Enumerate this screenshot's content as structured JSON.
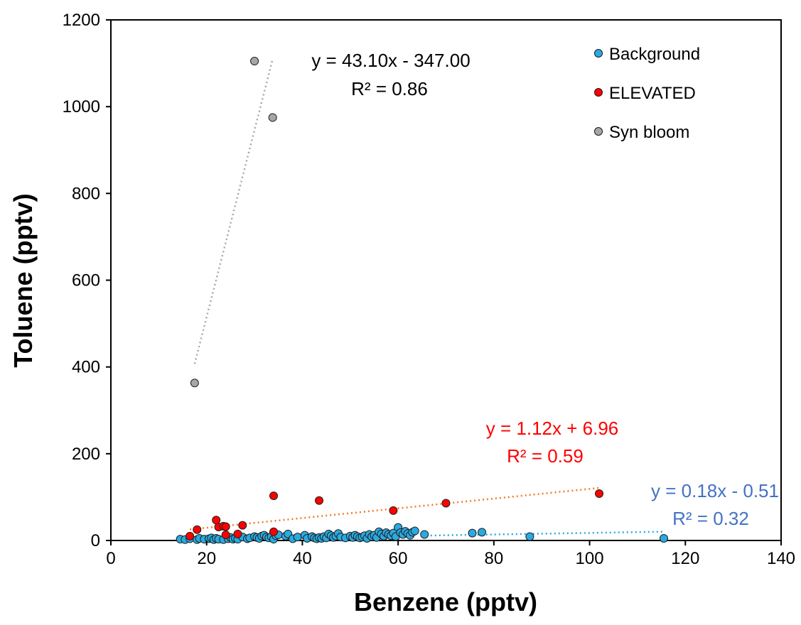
{
  "chart_data": {
    "type": "scatter",
    "title": "",
    "xlabel": "Benzene (pptv)",
    "ylabel": "Toluene (pptv)",
    "xlim": [
      0,
      140
    ],
    "ylim": [
      0,
      1200
    ],
    "xticks": [
      "0",
      "20",
      "40",
      "60",
      "80",
      "100",
      "120",
      "140"
    ],
    "yticks": [
      "0",
      "200",
      "400",
      "600",
      "800",
      "1000",
      "1200"
    ],
    "grid": false,
    "legend_position": "top-right",
    "series": [
      {
        "name": "Background",
        "color": "#29aae1",
        "x": [
          14.5,
          15.5,
          16.5,
          18,
          18.5,
          19.5,
          20.5,
          21,
          21.5,
          22,
          22.5,
          23.5,
          24.5,
          25,
          25.5,
          26,
          26.5,
          27.5,
          28.5,
          29,
          30,
          30.5,
          31,
          31.5,
          32,
          32.5,
          33,
          33.5,
          34,
          34.5,
          35,
          36.5,
          37,
          38,
          39,
          40.5,
          41,
          42,
          42.5,
          43,
          43.5,
          44,
          44.5,
          45,
          45.5,
          46,
          46.5,
          47,
          47.5,
          48,
          49,
          50,
          50.5,
          51,
          51.5,
          52,
          52.5,
          53,
          53.5,
          54,
          54.5,
          55,
          55.5,
          56,
          56.5,
          57,
          57.5,
          58,
          58.5,
          59,
          59.5,
          60,
          60.5,
          61,
          61.5,
          62,
          62.5,
          63,
          63.5,
          65.5,
          75.5,
          77.5,
          87.5,
          115.5
        ],
        "y": [
          3,
          2,
          4,
          2,
          5,
          3,
          4,
          6,
          2,
          5,
          3,
          2,
          4,
          7,
          3,
          5,
          3,
          8,
          4,
          6,
          9,
          7,
          5,
          10,
          12,
          8,
          6,
          9,
          3,
          11,
          13,
          10,
          15,
          4,
          8,
          12,
          5,
          9,
          6,
          4,
          7,
          5,
          9,
          6,
          15,
          11,
          7,
          10,
          16,
          8,
          6,
          10,
          7,
          12,
          9,
          6,
          8,
          11,
          5,
          14,
          9,
          12,
          7,
          20,
          15,
          10,
          18,
          14,
          11,
          17,
          9,
          30,
          18,
          14,
          21,
          16,
          12,
          19,
          22,
          14,
          17,
          19,
          9,
          5
        ]
      },
      {
        "name": "ELEVATED",
        "color": "#ff0000",
        "x": [
          16.5,
          18,
          22,
          22.5,
          23.5,
          24,
          24,
          26.5,
          27.5,
          34,
          34,
          43.5,
          59,
          70,
          102
        ],
        "y": [
          10,
          25,
          47,
          31,
          33,
          13,
          32,
          15,
          35,
          20,
          103,
          92,
          69,
          86,
          108
        ]
      },
      {
        "name": "Syn bloom",
        "color": "#a6a6a6",
        "x": [
          17.5,
          30,
          33.8
        ],
        "y": [
          363,
          1105,
          975
        ]
      }
    ],
    "trendlines": [
      {
        "series": "Syn bloom",
        "color": "#a6a6a6",
        "x_range": [
          17.5,
          33.8
        ],
        "slope": 43.1,
        "intercept": -347.0,
        "color_label": "#000000",
        "equation": "y = 43.10x - 347.00",
        "r2": "R² = 0.86"
      },
      {
        "series": "ELEVATED",
        "color": "#f07a28",
        "x_range": [
          16.5,
          102
        ],
        "slope": 1.12,
        "intercept": 6.96,
        "color_label": "#ff0000",
        "equation": "y = 1.12x + 6.96",
        "r2": "R² = 0.59"
      },
      {
        "series": "Background",
        "color": "#29aae1",
        "x_range": [
          65,
          115.5
        ],
        "slope": 0.18,
        "intercept": -0.51,
        "color_label": "#4472c4",
        "equation": "y = 0.18x - 0.51",
        "r2": "R² = 0.32"
      }
    ]
  }
}
